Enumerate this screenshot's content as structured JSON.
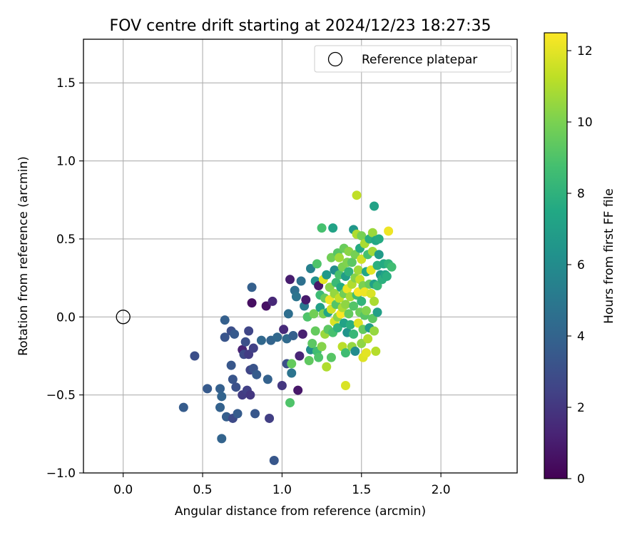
{
  "chart_data": {
    "type": "scatter",
    "title": "FOV centre drift starting at 2024/12/23 18:27:35",
    "xlabel": "Angular distance from reference (arcmin)",
    "ylabel": "Rotation from reference (arcmin)",
    "xlim": [
      -0.25,
      2.48
    ],
    "ylim": [
      -1.0,
      1.78
    ],
    "x_ticks": [
      0.0,
      0.5,
      1.0,
      1.5,
      2.0
    ],
    "x_tick_labels": [
      "0.0",
      "0.5",
      "1.0",
      "1.5",
      "2.0"
    ],
    "y_ticks": [
      -1.0,
      -0.5,
      0.0,
      0.5,
      1.0,
      1.5
    ],
    "y_tick_labels": [
      "−1.0",
      "−0.5",
      "0.0",
      "0.5",
      "1.0",
      "1.5"
    ],
    "grid": true,
    "legend": {
      "position": "top-right",
      "label": "Reference platepar"
    },
    "reference_point": {
      "x": 0.0,
      "y": 0.0
    },
    "colorbar": {
      "label": "Hours from first FF file",
      "range": [
        0,
        12.5
      ],
      "ticks": [
        0,
        2,
        4,
        6,
        8,
        10,
        12
      ],
      "tick_labels": [
        "0",
        "2",
        "4",
        "6",
        "8",
        "10",
        "12"
      ],
      "colormap": "viridis"
    },
    "points": [
      [
        0.38,
        -0.58,
        3.6
      ],
      [
        0.45,
        -0.25,
        3.0
      ],
      [
        0.53,
        -0.46,
        3.5
      ],
      [
        0.61,
        -0.46,
        3.8
      ],
      [
        0.62,
        -0.51,
        4.0
      ],
      [
        0.61,
        -0.58,
        3.9
      ],
      [
        0.62,
        -0.78,
        4.0
      ],
      [
        0.64,
        -0.02,
        3.8
      ],
      [
        0.64,
        -0.13,
        3.3
      ],
      [
        0.65,
        -0.64,
        3.7
      ],
      [
        0.68,
        -0.31,
        3.4
      ],
      [
        0.68,
        -0.09,
        3.0
      ],
      [
        0.69,
        -0.4,
        3.3
      ],
      [
        0.7,
        -0.11,
        3.5
      ],
      [
        0.69,
        -0.65,
        2.8
      ],
      [
        0.71,
        -0.45,
        3.1
      ],
      [
        0.72,
        -0.62,
        3.6
      ],
      [
        0.75,
        -0.21,
        1.2
      ],
      [
        0.75,
        -0.5,
        2.2
      ],
      [
        0.76,
        -0.24,
        2.8
      ],
      [
        0.77,
        -0.16,
        3.0
      ],
      [
        0.78,
        -0.47,
        2.4
      ],
      [
        0.79,
        -0.09,
        2.6
      ],
      [
        0.79,
        -0.24,
        2.2
      ],
      [
        0.8,
        -0.34,
        2.6
      ],
      [
        0.8,
        -0.5,
        2.0
      ],
      [
        0.81,
        0.19,
        3.8
      ],
      [
        0.81,
        0.09,
        0.5
      ],
      [
        0.82,
        -0.33,
        3.2
      ],
      [
        0.82,
        -0.2,
        2.4
      ],
      [
        0.83,
        -0.62,
        3.4
      ],
      [
        0.84,
        -0.37,
        3.6
      ],
      [
        0.87,
        -0.15,
        4.2
      ],
      [
        0.9,
        0.07,
        0.6
      ],
      [
        0.91,
        -0.4,
        3.9
      ],
      [
        0.92,
        -0.65,
        2.3
      ],
      [
        0.93,
        -0.15,
        4.0
      ],
      [
        0.94,
        0.1,
        1.4
      ],
      [
        0.95,
        -0.92,
        3.4
      ],
      [
        0.97,
        -0.13,
        4.2
      ],
      [
        1.0,
        -0.44,
        2.0
      ],
      [
        1.01,
        -0.08,
        1.5
      ],
      [
        1.03,
        -0.14,
        4.3
      ],
      [
        1.03,
        -0.3,
        3.0
      ],
      [
        1.04,
        0.02,
        4.5
      ],
      [
        1.05,
        0.24,
        1.0
      ],
      [
        1.06,
        -0.36,
        4.8
      ],
      [
        1.05,
        -0.55,
        9.0
      ],
      [
        1.06,
        -0.3,
        9.5
      ],
      [
        1.07,
        -0.12,
        3.8
      ],
      [
        1.08,
        0.17,
        4.5
      ],
      [
        1.09,
        0.13,
        4.8
      ],
      [
        1.1,
        -0.47,
        0.8
      ],
      [
        1.11,
        -0.25,
        1.3
      ],
      [
        1.12,
        0.23,
        4.6
      ],
      [
        1.13,
        -0.11,
        1.1
      ],
      [
        1.14,
        0.07,
        5.0
      ],
      [
        1.15,
        0.11,
        0.9
      ],
      [
        1.16,
        0.0,
        9.0
      ],
      [
        1.17,
        -0.28,
        9.4
      ],
      [
        1.18,
        0.31,
        5.4
      ],
      [
        1.18,
        -0.21,
        6.0
      ],
      [
        1.19,
        -0.17,
        9.3
      ],
      [
        1.2,
        0.02,
        9.8
      ],
      [
        1.21,
        0.23,
        6.2
      ],
      [
        1.21,
        -0.09,
        9.5
      ],
      [
        1.22,
        -0.22,
        8.6
      ],
      [
        1.22,
        0.34,
        9.0
      ],
      [
        1.23,
        0.2,
        0.8
      ],
      [
        1.23,
        -0.26,
        9.0
      ],
      [
        1.24,
        0.06,
        7.0
      ],
      [
        1.24,
        0.14,
        8.5
      ],
      [
        1.25,
        -0.19,
        10.2
      ],
      [
        1.25,
        0.57,
        8.8
      ],
      [
        1.26,
        0.02,
        10.0
      ],
      [
        1.26,
        0.24,
        12.0
      ],
      [
        1.27,
        -0.11,
        10.6
      ],
      [
        1.27,
        0.12,
        9.6
      ],
      [
        1.28,
        -0.32,
        11.0
      ],
      [
        1.28,
        0.27,
        6.7
      ],
      [
        1.29,
        0.03,
        7.4
      ],
      [
        1.29,
        -0.08,
        9.3
      ],
      [
        1.3,
        0.19,
        10.2
      ],
      [
        1.3,
        0.11,
        12.2
      ],
      [
        1.31,
        -0.26,
        9.2
      ],
      [
        1.31,
        0.38,
        9.8
      ],
      [
        1.31,
        0.05,
        11.6
      ],
      [
        1.32,
        -0.1,
        8.8
      ],
      [
        1.32,
        0.57,
        7.2
      ],
      [
        1.33,
        0.15,
        10.5
      ],
      [
        1.33,
        0.3,
        6.0
      ],
      [
        1.33,
        -0.03,
        11.8
      ],
      [
        1.34,
        0.22,
        8.4
      ],
      [
        1.34,
        0.08,
        9.1
      ],
      [
        1.35,
        0.41,
        9.2
      ],
      [
        1.35,
        0.0,
        10.3
      ],
      [
        1.35,
        -0.07,
        8.0
      ],
      [
        1.36,
        0.27,
        8.9
      ],
      [
        1.36,
        0.12,
        11.3
      ],
      [
        1.36,
        0.38,
        10.7
      ],
      [
        1.37,
        0.19,
        7.6
      ],
      [
        1.37,
        0.02,
        12.4
      ],
      [
        1.38,
        0.32,
        10.0
      ],
      [
        1.38,
        -0.19,
        11.2
      ],
      [
        1.38,
        0.06,
        10.9
      ],
      [
        1.39,
        0.44,
        9.6
      ],
      [
        1.39,
        0.15,
        9.8
      ],
      [
        1.39,
        -0.04,
        7.2
      ],
      [
        1.4,
        0.26,
        6.9
      ],
      [
        1.4,
        0.08,
        10.4
      ],
      [
        1.4,
        -0.23,
        8.6
      ],
      [
        1.4,
        -0.44,
        11.8
      ],
      [
        1.41,
        0.35,
        10.1
      ],
      [
        1.41,
        0.18,
        12.1
      ],
      [
        1.41,
        -0.1,
        6.4
      ],
      [
        1.42,
        0.02,
        9.5
      ],
      [
        1.42,
        0.29,
        8.0
      ],
      [
        1.42,
        0.42,
        10.3
      ],
      [
        1.43,
        0.13,
        10.8
      ],
      [
        1.43,
        -0.05,
        7.8
      ],
      [
        1.44,
        0.21,
        11.0
      ],
      [
        1.44,
        0.35,
        9.3
      ],
      [
        1.44,
        -0.19,
        10.5
      ],
      [
        1.45,
        0.56,
        6.6
      ],
      [
        1.45,
        0.07,
        9.1
      ],
      [
        1.45,
        -0.11,
        8.3
      ],
      [
        1.46,
        0.25,
        10.2
      ],
      [
        1.46,
        0.4,
        9.9
      ],
      [
        1.46,
        -0.22,
        6.0
      ],
      [
        1.47,
        0.14,
        8.6
      ],
      [
        1.47,
        0.53,
        11.0
      ],
      [
        1.47,
        0.78,
        11.3
      ],
      [
        1.48,
        0.3,
        10.7
      ],
      [
        1.48,
        -0.04,
        11.9
      ],
      [
        1.48,
        0.16,
        12.4
      ],
      [
        1.49,
        0.44,
        7.6
      ],
      [
        1.49,
        0.03,
        9.7
      ],
      [
        1.49,
        0.24,
        11.4
      ],
      [
        1.5,
        -0.17,
        10.4
      ],
      [
        1.5,
        0.52,
        9.9
      ],
      [
        1.5,
        0.1,
        8.1
      ],
      [
        1.5,
        0.37,
        11.6
      ],
      [
        1.51,
        -0.26,
        11.9
      ],
      [
        1.51,
        0.2,
        10.0
      ],
      [
        1.51,
        -0.08,
        9.5
      ],
      [
        1.52,
        0.47,
        10.9
      ],
      [
        1.52,
        0.16,
        12.2
      ],
      [
        1.52,
        0.01,
        9.2
      ],
      [
        1.53,
        -0.23,
        12.0
      ],
      [
        1.53,
        0.29,
        7.4
      ],
      [
        1.53,
        0.04,
        10.1
      ],
      [
        1.54,
        0.4,
        8.8
      ],
      [
        1.54,
        -0.14,
        11.1
      ],
      [
        1.55,
        0.21,
        9.6
      ],
      [
        1.55,
        -0.07,
        6.8
      ],
      [
        1.55,
        0.5,
        7.8
      ],
      [
        1.56,
        0.15,
        11.8
      ],
      [
        1.56,
        0.3,
        12.0
      ],
      [
        1.57,
        0.42,
        10.7
      ],
      [
        1.57,
        -0.01,
        9.3
      ],
      [
        1.57,
        0.54,
        10.6
      ],
      [
        1.58,
        0.21,
        7.1
      ],
      [
        1.58,
        0.1,
        10.9
      ],
      [
        1.58,
        -0.09,
        10.5
      ],
      [
        1.58,
        0.71,
        7.2
      ],
      [
        1.59,
        0.49,
        7.4
      ],
      [
        1.59,
        -0.22,
        11.1
      ],
      [
        1.6,
        0.33,
        7.9
      ],
      [
        1.6,
        0.2,
        8.4
      ],
      [
        1.6,
        0.03,
        7.0
      ],
      [
        1.61,
        0.5,
        7.6
      ],
      [
        1.61,
        0.4,
        6.8
      ],
      [
        1.62,
        0.27,
        6.5
      ],
      [
        1.63,
        0.24,
        7.9
      ],
      [
        1.64,
        0.34,
        7.6
      ],
      [
        1.65,
        0.27,
        7.3
      ],
      [
        1.66,
        0.26,
        7.8
      ],
      [
        1.67,
        0.55,
        12.2
      ],
      [
        1.67,
        0.34,
        8.1
      ],
      [
        1.69,
        0.32,
        8.6
      ]
    ]
  }
}
